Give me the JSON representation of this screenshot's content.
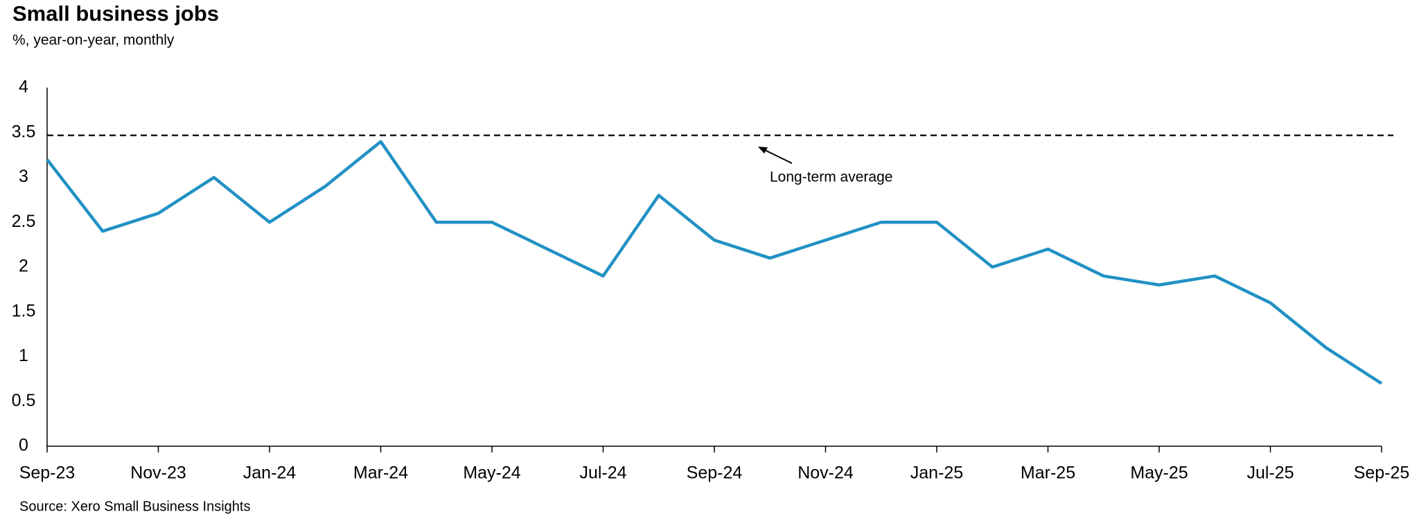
{
  "chart_data": {
    "type": "line",
    "title": "Small business jobs",
    "subtitle": "%, year-on-year, monthly",
    "source": "Source: Xero Small Business Insights",
    "categories": [
      "Sep-23",
      null,
      "Nov-23",
      null,
      "Jan-24",
      null,
      "Mar-24",
      null,
      "May-24",
      null,
      "Jul-24",
      null,
      "Sep-24",
      null,
      "Nov-24",
      null,
      "Jan-25",
      null,
      "Mar-25",
      null,
      "May-25",
      null,
      "Jul-25",
      null,
      "Sep-25"
    ],
    "series": [
      {
        "name": "Small business jobs",
        "color": "#2191c4",
        "values": [
          3.2,
          2.4,
          2.6,
          3.0,
          2.5,
          2.9,
          3.4,
          2.5,
          2.5,
          2.2,
          1.9,
          2.8,
          2.3,
          2.1,
          2.3,
          2.5,
          2.5,
          2.0,
          2.2,
          1.9,
          1.8,
          1.9,
          1.6,
          1.1,
          0.7
        ]
      }
    ],
    "reference_line": {
      "value": 3.47,
      "label": "Long-term average",
      "color": "#000000"
    },
    "ylim": [
      0,
      4
    ],
    "yticks": [
      0,
      0.5,
      1,
      1.5,
      2,
      2.5,
      3,
      3.5,
      4
    ],
    "grid": false
  }
}
